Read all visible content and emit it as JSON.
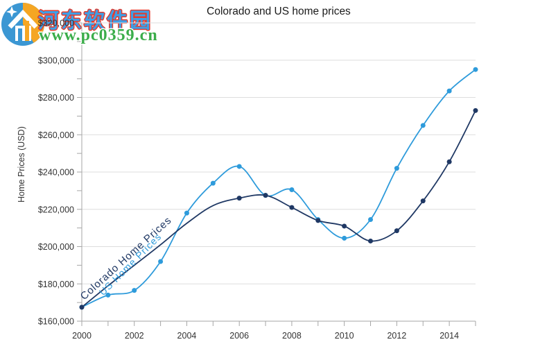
{
  "watermark": {
    "site_name": "河东软件园",
    "site_url": "www.pc0359.cn",
    "logo_blue": "#3B97D3",
    "logo_orange": "#F5A623",
    "name_fill_color": "#3F9FE6",
    "name_outline_color": "#E23B2E",
    "url_color": "#3BAD4A"
  },
  "chart_data": {
    "type": "line",
    "title": "Colorado and US home prices",
    "xlabel": "",
    "ylabel": "Home Prices (USD)",
    "x": [
      2000,
      2001,
      2002,
      2003,
      2004,
      2005,
      2006,
      2007,
      2008,
      2009,
      2010,
      2011,
      2012,
      2013,
      2014,
      2015
    ],
    "x_tick_label_years": [
      2000,
      2002,
      2004,
      2006,
      2008,
      2010,
      2012,
      2014
    ],
    "ylim": [
      160000,
      320000
    ],
    "ytick_major_step": 20000,
    "ytick_minor_step": 10000,
    "y_tick_labels": [
      "$160,000",
      "$180,000",
      "$200,000",
      "$220,000",
      "$240,000",
      "$260,000",
      "$280,000",
      "$300,000",
      "$320,000"
    ],
    "grid": "horizontal-major",
    "legend": "inline-curve-labels",
    "series": [
      {
        "name": "Colorado Home Prices",
        "color": "#1F3864",
        "smooth": true,
        "values": [
          167500,
          179000,
          190000,
          201000,
          212500,
          222000,
          226000,
          227500,
          221000,
          214000,
          211000,
          203000,
          208500,
          224500,
          245500,
          273000
        ],
        "marker_years": [
          2000,
          2006,
          2007,
          2008,
          2009,
          2010,
          2011,
          2012,
          2013,
          2014,
          2015
        ]
      },
      {
        "name": "US Home Prices",
        "color": "#2E9BDB",
        "smooth": true,
        "values": [
          167500,
          174000,
          176500,
          192000,
          218000,
          234000,
          243000,
          227500,
          230500,
          214500,
          204500,
          214500,
          242000,
          265000,
          283500,
          295000
        ],
        "marker_years": [
          2000,
          2001,
          2002,
          2003,
          2004,
          2005,
          2006,
          2007,
          2008,
          2009,
          2010,
          2011,
          2012,
          2013,
          2014,
          2015
        ]
      }
    ],
    "style_colors": {
      "gridline": "#DDDDDD",
      "axis": "#A6A6A6",
      "tick_label": "#333333",
      "title": "#1A1A1A"
    }
  }
}
